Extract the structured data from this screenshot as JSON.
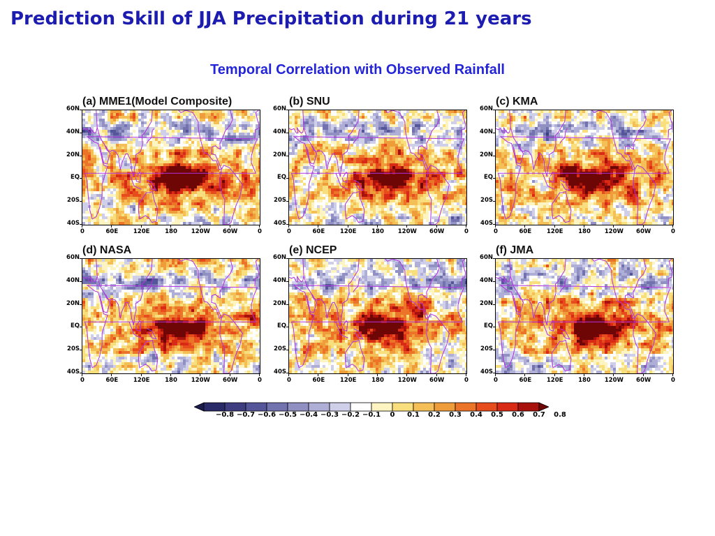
{
  "title": "Prediction Skill of JJA Precipitation during 21 years",
  "subtitle": "Temporal Correlation with Observed Rainfall",
  "panels": [
    {
      "label": "(a) MME1(Model Composite)",
      "seed": 11
    },
    {
      "label": "(b) SNU",
      "seed": 23
    },
    {
      "label": "(c) KMA",
      "seed": 37
    },
    {
      "label": "(d) NASA",
      "seed": 41
    },
    {
      "label": "(e) NCEP",
      "seed": 53
    },
    {
      "label": "(f) JMA",
      "seed": 67
    }
  ],
  "axes": {
    "lat_labels": [
      "60N",
      "40N",
      "20N",
      "EQ",
      "20S",
      "40S"
    ],
    "lon_labels": [
      "0",
      "60E",
      "120E",
      "180",
      "120W",
      "60W",
      "0"
    ]
  },
  "colorbar": {
    "labels": [
      "−0.8",
      "−0.7",
      "−0.6",
      "−0.5",
      "−0.4",
      "−0.3",
      "−0.2",
      "−0.1",
      "0",
      "0.1",
      "0.2",
      "0.3",
      "0.4",
      "0.5",
      "0.6",
      "0.7",
      "0.8"
    ],
    "colors": [
      "#1b1b4e",
      "#2a2a68",
      "#3d3d80",
      "#55559a",
      "#7272ae",
      "#9090c2",
      "#aeaed6",
      "#cfcfea",
      "#ffffff",
      "#fdf4c2",
      "#f8de7c",
      "#f3bf56",
      "#ef9c3b",
      "#ec7428",
      "#e74d1c",
      "#d82a14",
      "#a8110c",
      "#6e0606"
    ]
  }
}
